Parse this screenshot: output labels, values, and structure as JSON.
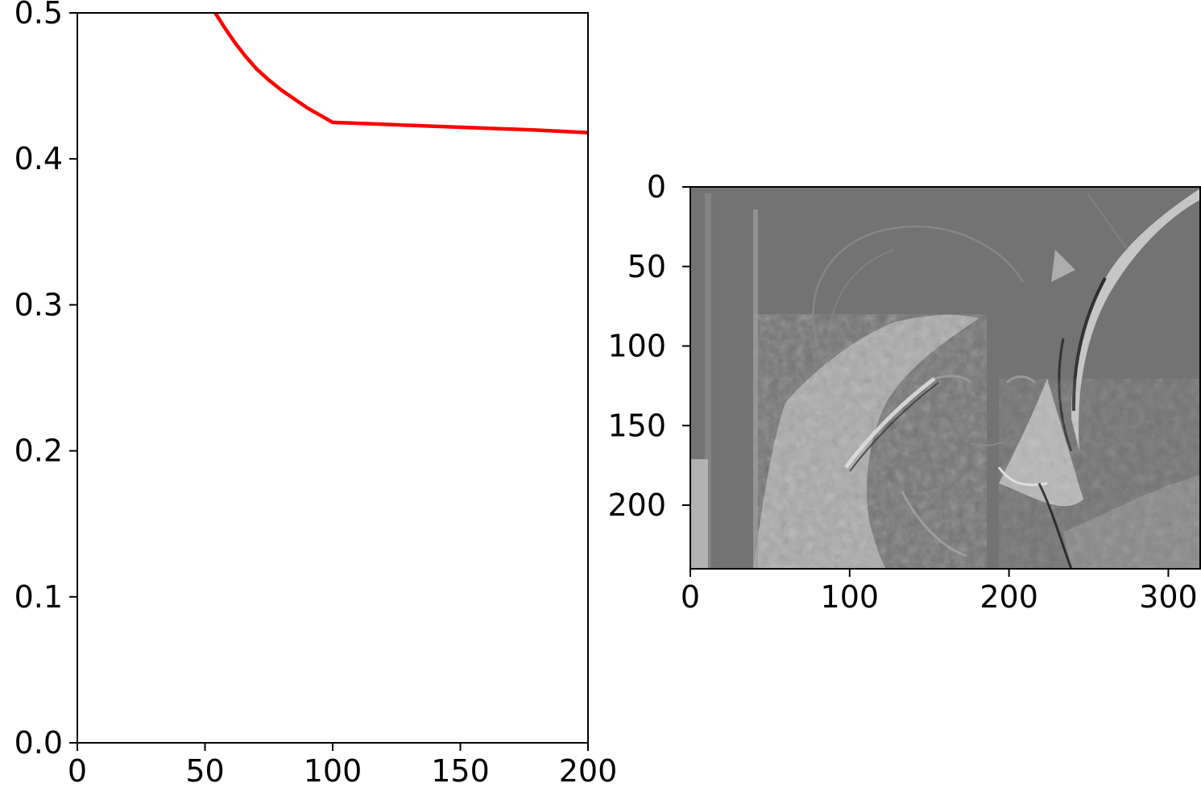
{
  "chart_data": [
    {
      "type": "line",
      "title": "",
      "xlabel": "",
      "ylabel": "",
      "xlim": [
        0,
        200
      ],
      "ylim": [
        0.0,
        0.5
      ],
      "x_ticks": [
        "0",
        "50",
        "100",
        "150",
        "200"
      ],
      "y_ticks": [
        "0.0",
        "0.1",
        "0.2",
        "0.3",
        "0.4",
        "0.5"
      ],
      "grid": false,
      "series": [
        {
          "color": "#ff0000",
          "x": [
            54,
            58,
            62,
            66,
            70,
            75,
            80,
            85,
            90,
            95,
            100,
            120,
            140,
            160,
            180,
            200
          ],
          "y": [
            0.5,
            0.489,
            0.479,
            0.47,
            0.462,
            0.454,
            0.447,
            0.441,
            0.435,
            0.43,
            0.425,
            0.4237,
            0.4223,
            0.421,
            0.4197,
            0.418
          ]
        }
      ]
    },
    {
      "type": "heatmap",
      "title": "",
      "xlabel": "",
      "ylabel": "",
      "xlim": [
        0,
        320
      ],
      "ylim": [
        240,
        0
      ],
      "x_ticks": [
        "0",
        "100",
        "200",
        "300"
      ],
      "y_ticks": [
        "0",
        "50",
        "100",
        "150",
        "200"
      ],
      "colormap": "gray",
      "background_color": "#737373",
      "content": "grayscale edge-filtered photograph"
    }
  ]
}
